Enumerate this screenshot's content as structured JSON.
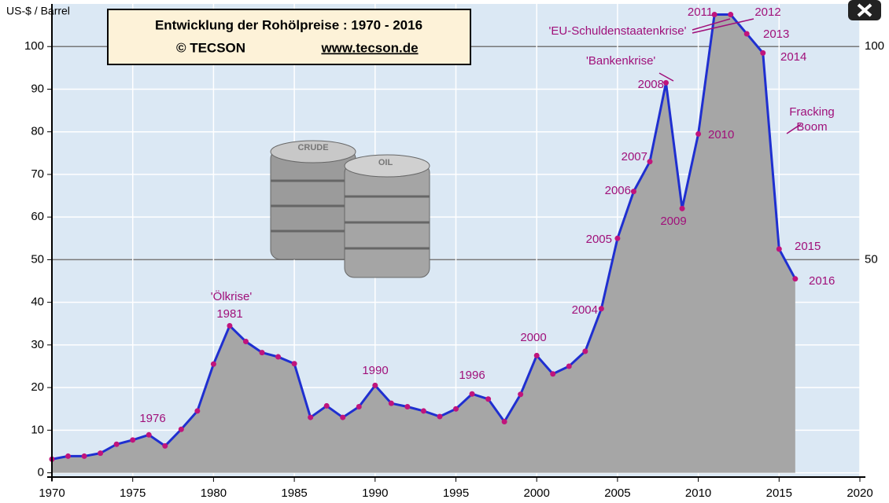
{
  "chart_data": {
    "type": "area",
    "title": "Entwicklung der Rohölpreise :  1970 - 2016",
    "copyright": "© TECSON",
    "website": "www.tecson.de",
    "y_label": "US-$ / Barrel",
    "x": [
      1970,
      1971,
      1972,
      1973,
      1974,
      1975,
      1976,
      1977,
      1978,
      1979,
      1980,
      1981,
      1982,
      1983,
      1984,
      1985,
      1986,
      1987,
      1988,
      1989,
      1990,
      1991,
      1992,
      1993,
      1994,
      1995,
      1996,
      1997,
      1998,
      1999,
      2000,
      2001,
      2002,
      2003,
      2004,
      2005,
      2006,
      2007,
      2008,
      2009,
      2010,
      2011,
      2012,
      2013,
      2014,
      2015,
      2016
    ],
    "series": [
      {
        "color": "#1f2fd0",
        "fill": "#a6a6a6",
        "marker_color": "#c0147c",
        "values": [
          3.2,
          3.9,
          3.9,
          4.6,
          6.7,
          7.7,
          8.9,
          6.3,
          10.2,
          14.5,
          25.5,
          34.5,
          30.8,
          28.2,
          27.2,
          25.6,
          13,
          15.7,
          13,
          15.5,
          20.5,
          16.3,
          15.5,
          14.5,
          13.2,
          15,
          18.5,
          17.3,
          12,
          18.4,
          27.5,
          23.2,
          25,
          28.5,
          38.5,
          55,
          66,
          73,
          91.5,
          62,
          79.5,
          107.5,
          107.5,
          103,
          98.5,
          52.5,
          45.5
        ]
      }
    ],
    "xlim": [
      1970,
      2020
    ],
    "xticks": [
      1970,
      1975,
      1980,
      1985,
      1990,
      1995,
      2000,
      2005,
      2010,
      2015,
      2020
    ],
    "ylim": [
      -1,
      110
    ],
    "yticks": [
      0,
      10,
      20,
      30,
      40,
      50,
      60,
      70,
      80,
      90,
      100
    ],
    "y2lim": [
      -1,
      110
    ],
    "y2ticks": [
      50,
      100
    ],
    "grid": true,
    "annotations": [
      "1976",
      "'Ölkrise'",
      "1981",
      "1990",
      "1996",
      "2000",
      "2004",
      "2005",
      "2006",
      "2007",
      "2008",
      "'Bankenkrise'",
      "2009",
      "2010",
      "2011",
      "'EU-Schuldenstaatenkrise'",
      "2012",
      "2013",
      "2014",
      "2015",
      "2016",
      "Fracking",
      "Boom"
    ],
    "image_labels": [
      "CRUDE",
      "OIL"
    ]
  }
}
